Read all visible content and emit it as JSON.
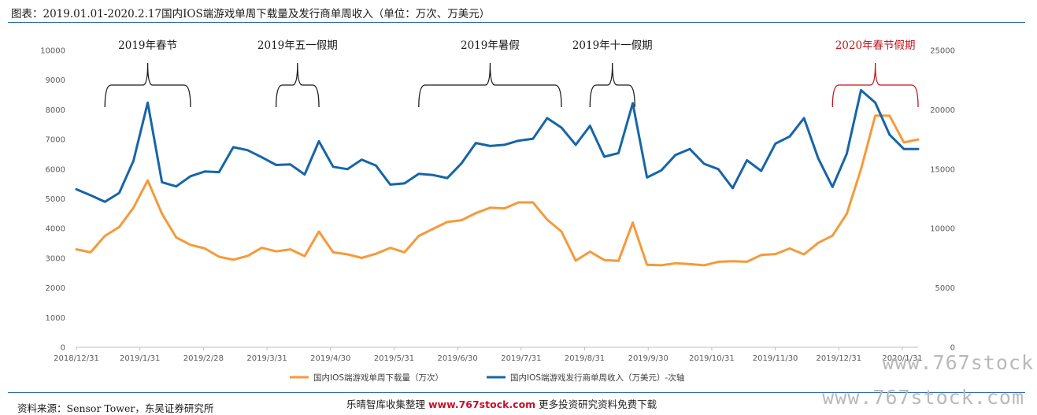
{
  "header": {
    "title": "图表：2019.01.01-2020.2.17国内IOS端游戏单周下载量及发行商单周收入（单位：万次、万美元）"
  },
  "footer": {
    "source": "资料来源：Sensor Tower，东吴证券研究所",
    "banner_prefix": "乐晴智库收集整理",
    "banner_url": "www.767stock.com",
    "banner_suffix": "更多投资研究资料免费下载"
  },
  "watermark": {
    "text1": "www.767stock",
    "text2": "www.767stock.com"
  },
  "colors": {
    "download": "#f59a3a",
    "revenue": "#1665a8",
    "holiday_red": "#c0141b",
    "holiday_black": "#1a1a1a",
    "rule": "#2f6ea8"
  },
  "chart_data": {
    "type": "line",
    "x_tick_labels": [
      "2018/12/31",
      "2019/1/31",
      "2019/2/28",
      "2019/3/31",
      "2019/4/30",
      "2019/5/31",
      "2019/6/30",
      "2019/7/31",
      "2019/8/31",
      "2019/9/30",
      "2019/10/31",
      "2019/11/30",
      "2019/12/31",
      "2020/1/31"
    ],
    "y_left": {
      "min": 0,
      "max": 10000,
      "ticks": [
        0,
        1000,
        2000,
        3000,
        4000,
        5000,
        6000,
        7000,
        8000,
        9000,
        10000
      ]
    },
    "y_right": {
      "min": 0,
      "max": 25000,
      "ticks": [
        0,
        5000,
        10000,
        15000,
        20000,
        25000
      ]
    },
    "x_range": [
      "2018-12-31",
      "2020-02-17"
    ],
    "grid": false,
    "legend_position": "bottom",
    "series": [
      {
        "name": "国内IOS端游戏单周下载量（万次）",
        "axis": "left",
        "x": [
          "2018-12-31",
          "2019-01-07",
          "2019-01-14",
          "2019-01-21",
          "2019-01-28",
          "2019-02-04",
          "2019-02-11",
          "2019-02-18",
          "2019-02-25",
          "2019-03-04",
          "2019-03-11",
          "2019-03-18",
          "2019-03-25",
          "2019-04-01",
          "2019-04-08",
          "2019-04-15",
          "2019-04-22",
          "2019-04-29",
          "2019-05-06",
          "2019-05-13",
          "2019-05-20",
          "2019-05-27",
          "2019-06-03",
          "2019-06-10",
          "2019-06-17",
          "2019-06-24",
          "2019-07-01",
          "2019-07-08",
          "2019-07-15",
          "2019-07-22",
          "2019-07-29",
          "2019-08-05",
          "2019-08-12",
          "2019-08-19",
          "2019-08-26",
          "2019-09-02",
          "2019-09-09",
          "2019-09-16",
          "2019-09-23",
          "2019-09-30",
          "2019-10-07",
          "2019-10-14",
          "2019-10-21",
          "2019-10-28",
          "2019-11-04",
          "2019-11-11",
          "2019-11-18",
          "2019-11-25",
          "2019-12-02",
          "2019-12-09",
          "2019-12-16",
          "2019-12-23",
          "2019-12-30",
          "2020-01-06",
          "2020-01-13",
          "2020-01-20",
          "2020-01-27",
          "2020-02-03",
          "2020-02-10",
          "2020-02-17"
        ],
        "values": [
          3300,
          3200,
          3750,
          4050,
          4700,
          5620,
          4500,
          3700,
          3450,
          3330,
          3050,
          2950,
          3080,
          3350,
          3230,
          3300,
          3070,
          3900,
          3200,
          3130,
          3010,
          3150,
          3350,
          3200,
          3750,
          3990,
          4220,
          4280,
          4520,
          4700,
          4680,
          4880,
          4880,
          4300,
          3900,
          2920,
          3220,
          2940,
          2910,
          4200,
          2780,
          2760,
          2830,
          2800,
          2760,
          2880,
          2900,
          2880,
          3110,
          3140,
          3330,
          3130,
          3520,
          3760,
          4500,
          6000,
          7800,
          7800,
          6900,
          7000
        ]
      },
      {
        "name": "国内IOS端游戏发行商单周收入（万美元）-次轴",
        "axis": "right",
        "x": [
          "2018-12-31",
          "2019-01-07",
          "2019-01-14",
          "2019-01-21",
          "2019-01-28",
          "2019-02-04",
          "2019-02-11",
          "2019-02-18",
          "2019-02-25",
          "2019-03-04",
          "2019-03-11",
          "2019-03-18",
          "2019-03-25",
          "2019-04-01",
          "2019-04-08",
          "2019-04-15",
          "2019-04-22",
          "2019-04-29",
          "2019-05-06",
          "2019-05-13",
          "2019-05-20",
          "2019-05-27",
          "2019-06-03",
          "2019-06-10",
          "2019-06-17",
          "2019-06-24",
          "2019-07-01",
          "2019-07-08",
          "2019-07-15",
          "2019-07-22",
          "2019-07-29",
          "2019-08-05",
          "2019-08-12",
          "2019-08-19",
          "2019-08-26",
          "2019-09-02",
          "2019-09-09",
          "2019-09-16",
          "2019-09-23",
          "2019-09-30",
          "2019-10-07",
          "2019-10-14",
          "2019-10-21",
          "2019-10-28",
          "2019-11-04",
          "2019-11-11",
          "2019-11-18",
          "2019-11-25",
          "2019-12-02",
          "2019-12-09",
          "2019-12-16",
          "2019-12-23",
          "2019-12-30",
          "2020-01-06",
          "2020-01-13",
          "2020-01-20",
          "2020-01-27",
          "2020-02-03",
          "2020-02-10",
          "2020-02-17"
        ],
        "values": [
          13300,
          12800,
          12250,
          13000,
          15700,
          20600,
          13900,
          13550,
          14400,
          14800,
          14750,
          16850,
          16600,
          16000,
          15350,
          15400,
          14550,
          17350,
          15200,
          15000,
          15800,
          15300,
          13700,
          13800,
          14600,
          14500,
          14250,
          15500,
          17200,
          16950,
          17050,
          17400,
          17550,
          19300,
          18500,
          17050,
          18650,
          16050,
          16350,
          20550,
          14300,
          14900,
          16200,
          16700,
          15450,
          15000,
          13400,
          15750,
          14850,
          17150,
          17750,
          19300,
          15900,
          13500,
          16300,
          21650,
          20600,
          17900,
          16700,
          16700
        ]
      }
    ],
    "annotations": [
      {
        "label": "2019年春节",
        "color": "black",
        "bracket_from": "2019-01-14",
        "bracket_to": "2019-02-25"
      },
      {
        "label": "2019年五一假期",
        "color": "black",
        "bracket_from": "2019-04-08",
        "bracket_to": "2019-04-29"
      },
      {
        "label": "2019年暑假",
        "color": "black",
        "bracket_from": "2019-06-17",
        "bracket_to": "2019-08-26"
      },
      {
        "label": "2019年十一假期",
        "color": "black",
        "bracket_from": "2019-09-09",
        "bracket_to": "2019-10-01"
      },
      {
        "label": "2020年春节假期",
        "color": "red",
        "bracket_from": "2020-01-06",
        "bracket_to": "2020-02-17"
      }
    ]
  }
}
